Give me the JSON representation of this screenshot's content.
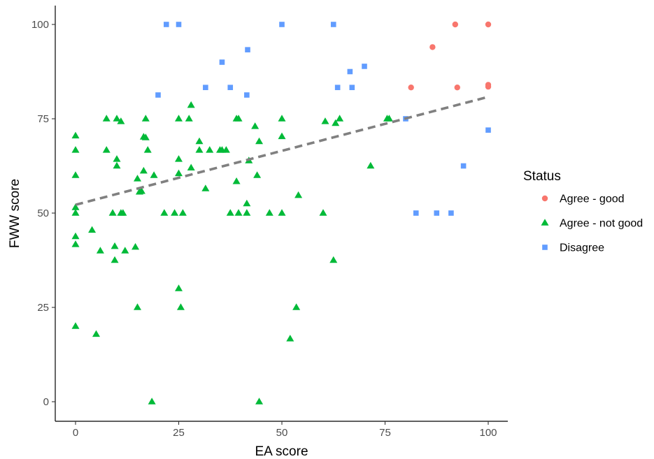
{
  "chart_data": {
    "type": "scatter",
    "xlabel": "EA score",
    "ylabel": "FWW score",
    "xlim": [
      -10,
      105
    ],
    "ylim": [
      -5,
      105
    ],
    "x_ticks": [
      0,
      25,
      50,
      75,
      100
    ],
    "y_ticks": [
      0,
      25,
      50,
      75,
      100
    ],
    "x_tick_labels": [
      "0",
      "25",
      "50",
      "75",
      "100"
    ],
    "y_tick_labels": [
      "0",
      "25",
      "50",
      "75",
      "100"
    ],
    "grid": false,
    "legend": {
      "title": "Status",
      "placement": "right"
    },
    "series": [
      {
        "name": "Agree - good",
        "marker": "circle",
        "color": "#F8766D",
        "points": [
          [
            81.3,
            83.3
          ],
          [
            86.5,
            94
          ],
          [
            92,
            100
          ],
          [
            92.5,
            83.3
          ],
          [
            100,
            100
          ],
          [
            100,
            84
          ],
          [
            100,
            83.5
          ]
        ]
      },
      {
        "name": "Agree - not good",
        "marker": "triangle",
        "color": "#00BA38",
        "points": [
          [
            0,
            70.5
          ],
          [
            0,
            66.7
          ],
          [
            0,
            60
          ],
          [
            0,
            51.5
          ],
          [
            0,
            50
          ],
          [
            0,
            43.8
          ],
          [
            0,
            41.7
          ],
          [
            0,
            20
          ],
          [
            4,
            45.5
          ],
          [
            5,
            17.9
          ],
          [
            6,
            40
          ],
          [
            7.5,
            75
          ],
          [
            7.5,
            66.7
          ],
          [
            9,
            50
          ],
          [
            9.5,
            37.5
          ],
          [
            9.5,
            41.2
          ],
          [
            10,
            75
          ],
          [
            10,
            64.3
          ],
          [
            10,
            62.5
          ],
          [
            11,
            74.3
          ],
          [
            11,
            50
          ],
          [
            11.5,
            50
          ],
          [
            12,
            40
          ],
          [
            14.5,
            41
          ],
          [
            15,
            25
          ],
          [
            15,
            59.1
          ],
          [
            15.5,
            55.6
          ],
          [
            16,
            55.8
          ],
          [
            16.5,
            70.2
          ],
          [
            16.5,
            61.2
          ],
          [
            17,
            75
          ],
          [
            17,
            70
          ],
          [
            17.5,
            66.7
          ],
          [
            18.5,
            0
          ],
          [
            19,
            60
          ],
          [
            21.5,
            50
          ],
          [
            24,
            50
          ],
          [
            25,
            75
          ],
          [
            25,
            64.3
          ],
          [
            25,
            60.5
          ],
          [
            25,
            30
          ],
          [
            25.5,
            25
          ],
          [
            26,
            50
          ],
          [
            27.5,
            75
          ],
          [
            28,
            78.6
          ],
          [
            28,
            62
          ],
          [
            30,
            69
          ],
          [
            30,
            66.7
          ],
          [
            31.5,
            56.5
          ],
          [
            32.5,
            66.7
          ],
          [
            35,
            66.7
          ],
          [
            35.5,
            66.7
          ],
          [
            36.5,
            66.7
          ],
          [
            37.5,
            50
          ],
          [
            39,
            75
          ],
          [
            39,
            58.4
          ],
          [
            39.5,
            75
          ],
          [
            39.5,
            50
          ],
          [
            41.5,
            52.5
          ],
          [
            41.5,
            50
          ],
          [
            42,
            63.9
          ],
          [
            43.5,
            73
          ],
          [
            44,
            60
          ],
          [
            44.5,
            0
          ],
          [
            44.5,
            69
          ],
          [
            47,
            50
          ],
          [
            50,
            75
          ],
          [
            50,
            70.3
          ],
          [
            50,
            50
          ],
          [
            52,
            16.7
          ],
          [
            53.5,
            25
          ],
          [
            54,
            54.7
          ],
          [
            60,
            50
          ],
          [
            60.5,
            74.3
          ],
          [
            62.5,
            37.5
          ],
          [
            63,
            73.8
          ],
          [
            64,
            75
          ],
          [
            71.5,
            62.5
          ],
          [
            75.5,
            75
          ],
          [
            76,
            75
          ]
        ]
      },
      {
        "name": "Disagree",
        "marker": "square",
        "color": "#619CFF",
        "points": [
          [
            20,
            81.3
          ],
          [
            22,
            100
          ],
          [
            25,
            100
          ],
          [
            31.5,
            83.3
          ],
          [
            35.5,
            90
          ],
          [
            37.5,
            83.3
          ],
          [
            41.5,
            81.3
          ],
          [
            41.7,
            93.3
          ],
          [
            50,
            100
          ],
          [
            62.5,
            100
          ],
          [
            63.5,
            83.3
          ],
          [
            66.5,
            87.5
          ],
          [
            67,
            83.3
          ],
          [
            70,
            88.9
          ],
          [
            80,
            75
          ],
          [
            82.5,
            50
          ],
          [
            87.5,
            50
          ],
          [
            91,
            50
          ],
          [
            94,
            62.5
          ],
          [
            100,
            72
          ]
        ]
      }
    ],
    "trend_line": {
      "style": "dashed",
      "color": "#808080",
      "start": [
        0,
        52.2
      ],
      "end": [
        100,
        80.8
      ]
    }
  }
}
